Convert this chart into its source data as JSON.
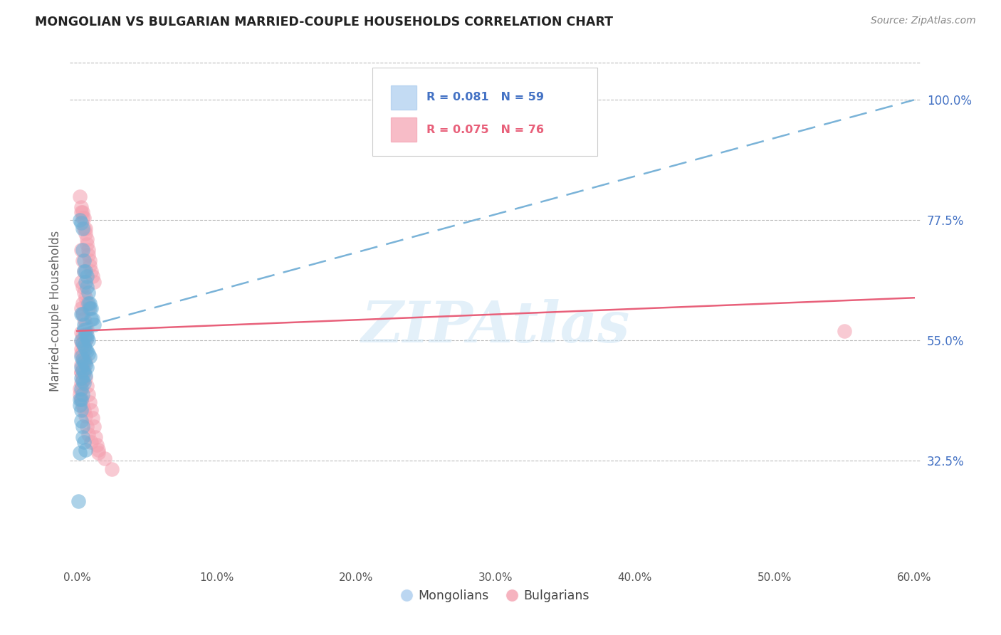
{
  "title": "MONGOLIAN VS BULGARIAN MARRIED-COUPLE HOUSEHOLDS CORRELATION CHART",
  "source": "Source: ZipAtlas.com",
  "ylabel": "Married-couple Households",
  "xlim": [
    -0.005,
    0.605
  ],
  "ylim": [
    0.13,
    1.08
  ],
  "yticks": [
    0.325,
    0.55,
    0.775,
    1.0
  ],
  "ytick_labels": [
    "32.5%",
    "55.0%",
    "77.5%",
    "100.0%"
  ],
  "xticks": [
    0.0,
    0.1,
    0.2,
    0.3,
    0.4,
    0.5,
    0.6
  ],
  "xtick_labels": [
    "0.0%",
    "10.0%",
    "20.0%",
    "30.0%",
    "40.0%",
    "50.0%",
    "60.0%"
  ],
  "mongolian_color": "#6baed6",
  "bulgarian_color": "#f4a0b0",
  "watermark": "ZIPAtlas",
  "mon_trend_x0": 0.0,
  "mon_trend_y0": 0.572,
  "mon_trend_x1": 0.6,
  "mon_trend_y1": 1.0,
  "bul_trend_x0": 0.0,
  "bul_trend_y0": 0.568,
  "bul_trend_x1": 0.6,
  "bul_trend_y1": 0.63,
  "mongolian_scatter_x": [
    0.002,
    0.003,
    0.004,
    0.004,
    0.005,
    0.005,
    0.006,
    0.006,
    0.007,
    0.007,
    0.008,
    0.008,
    0.009,
    0.009,
    0.01,
    0.01,
    0.011,
    0.012,
    0.003,
    0.004,
    0.005,
    0.005,
    0.006,
    0.006,
    0.007,
    0.007,
    0.008,
    0.003,
    0.004,
    0.005,
    0.006,
    0.007,
    0.008,
    0.009,
    0.003,
    0.004,
    0.005,
    0.006,
    0.007,
    0.003,
    0.004,
    0.005,
    0.006,
    0.003,
    0.004,
    0.005,
    0.003,
    0.004,
    0.003,
    0.002,
    0.002,
    0.003,
    0.003,
    0.004,
    0.004,
    0.005,
    0.006,
    0.002,
    0.001
  ],
  "mongolian_scatter_y": [
    0.775,
    0.77,
    0.76,
    0.72,
    0.7,
    0.68,
    0.68,
    0.66,
    0.67,
    0.65,
    0.64,
    0.62,
    0.62,
    0.61,
    0.61,
    0.59,
    0.59,
    0.58,
    0.6,
    0.6,
    0.58,
    0.57,
    0.57,
    0.56,
    0.56,
    0.555,
    0.55,
    0.55,
    0.545,
    0.54,
    0.535,
    0.53,
    0.525,
    0.52,
    0.52,
    0.515,
    0.51,
    0.505,
    0.5,
    0.5,
    0.495,
    0.49,
    0.485,
    0.48,
    0.475,
    0.47,
    0.46,
    0.45,
    0.44,
    0.44,
    0.43,
    0.42,
    0.4,
    0.39,
    0.37,
    0.36,
    0.345,
    0.34,
    0.25
  ],
  "bulgarian_scatter_x": [
    0.002,
    0.003,
    0.003,
    0.004,
    0.004,
    0.005,
    0.005,
    0.006,
    0.006,
    0.007,
    0.007,
    0.008,
    0.008,
    0.009,
    0.009,
    0.01,
    0.011,
    0.012,
    0.003,
    0.004,
    0.005,
    0.006,
    0.007,
    0.008,
    0.003,
    0.004,
    0.005,
    0.006,
    0.007,
    0.003,
    0.004,
    0.005,
    0.006,
    0.003,
    0.004,
    0.005,
    0.003,
    0.004,
    0.003,
    0.004,
    0.005,
    0.006,
    0.003,
    0.004,
    0.005,
    0.003,
    0.004,
    0.003,
    0.002,
    0.002,
    0.003,
    0.004,
    0.005,
    0.006,
    0.007,
    0.008,
    0.01,
    0.015,
    0.02,
    0.025,
    0.003,
    0.004,
    0.005,
    0.004,
    0.003,
    0.006,
    0.007,
    0.008,
    0.009,
    0.01,
    0.011,
    0.012,
    0.013,
    0.014,
    0.015,
    0.55
  ],
  "bulgarian_scatter_y": [
    0.82,
    0.8,
    0.79,
    0.79,
    0.78,
    0.78,
    0.76,
    0.76,
    0.75,
    0.74,
    0.73,
    0.72,
    0.71,
    0.7,
    0.69,
    0.68,
    0.67,
    0.66,
    0.66,
    0.65,
    0.64,
    0.63,
    0.62,
    0.61,
    0.61,
    0.6,
    0.59,
    0.58,
    0.57,
    0.565,
    0.56,
    0.555,
    0.55,
    0.548,
    0.545,
    0.54,
    0.535,
    0.53,
    0.525,
    0.52,
    0.515,
    0.51,
    0.505,
    0.5,
    0.495,
    0.49,
    0.48,
    0.47,
    0.46,
    0.45,
    0.44,
    0.43,
    0.42,
    0.41,
    0.39,
    0.375,
    0.36,
    0.345,
    0.33,
    0.31,
    0.72,
    0.7,
    0.68,
    0.62,
    0.49,
    0.48,
    0.465,
    0.45,
    0.435,
    0.42,
    0.405,
    0.39,
    0.37,
    0.355,
    0.34,
    0.568
  ]
}
